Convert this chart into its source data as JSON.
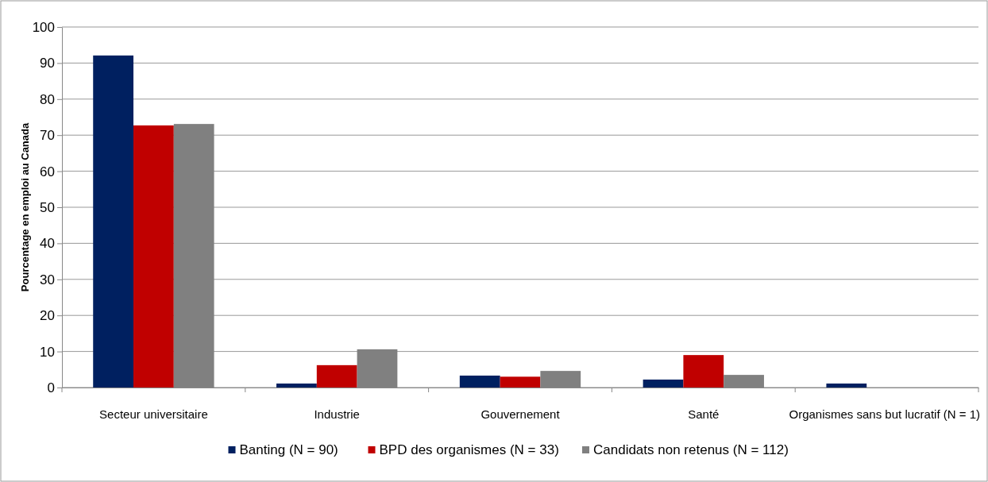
{
  "chart_data": {
    "type": "bar",
    "ylabel": "Pourcentage en emploi au Canada",
    "categories": [
      "Secteur universitaire",
      "Industrie",
      "Gouvernement",
      "Santé",
      "Organismes sans but lucratif (N = 1)"
    ],
    "series": [
      {
        "name": "Banting (N = 90)",
        "color": "#002060",
        "values": [
          92.1,
          1.1,
          3.3,
          2.2,
          1.1
        ]
      },
      {
        "name": "BPD des organismes (N = 33)",
        "color": "#c00000",
        "values": [
          72.7,
          6.2,
          3.0,
          9.0,
          0
        ]
      },
      {
        "name": "Candidats non retenus (N = 112)",
        "color": "#808080",
        "values": [
          73.1,
          10.6,
          4.6,
          3.5,
          0
        ]
      }
    ],
    "ylim": [
      0,
      100
    ],
    "yticks": [
      0,
      10,
      20,
      30,
      40,
      50,
      60,
      70,
      80,
      90,
      100
    ],
    "grid": "y",
    "legend": "bottom"
  }
}
